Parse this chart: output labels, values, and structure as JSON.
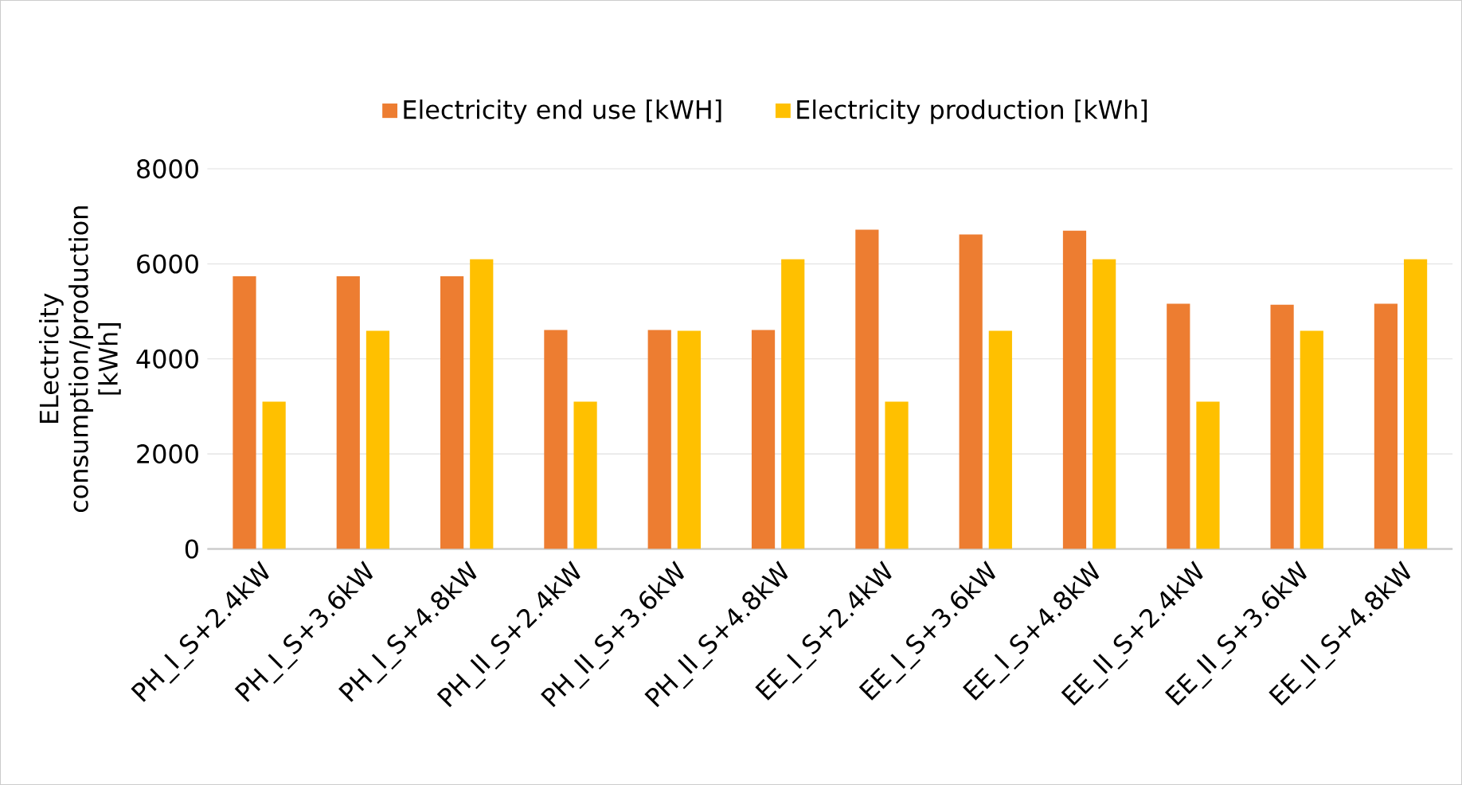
{
  "chart_data": {
    "type": "bar",
    "ylabel": "ELectricity consumption/production [kWh]",
    "categories": [
      "PH_I_S+2.4kW",
      "PH_I_S+3.6kW",
      "PH_I_S+4.8kW",
      "PH_II_S+2.4kW",
      "PH_II_S+3.6kW",
      "PH_II_S+4.8kW",
      "EE_I_S+2.4kW",
      "EE_I_S+3.6kW",
      "EE_I_S+4.8kW",
      "EE_II_S+2.4kW",
      "EE_II_S+3.6kW",
      "EE_II_S+4.8kW"
    ],
    "series": [
      {
        "name": "Electricity end use [kWH]",
        "color": "#ed7d31",
        "values": [
          5740,
          5740,
          5740,
          4610,
          4610,
          4610,
          6720,
          6620,
          6700,
          5160,
          5140,
          5160
        ]
      },
      {
        "name": "Electricity production [kWh]",
        "color": "#ffc000",
        "values": [
          3100,
          4590,
          6100,
          3100,
          4590,
          6100,
          3100,
          4590,
          6100,
          3100,
          4590,
          6100
        ]
      }
    ],
    "ylim": [
      0,
      8000
    ],
    "yticks": [
      0,
      2000,
      4000,
      6000,
      8000
    ],
    "grid": "y",
    "legend": "top"
  }
}
